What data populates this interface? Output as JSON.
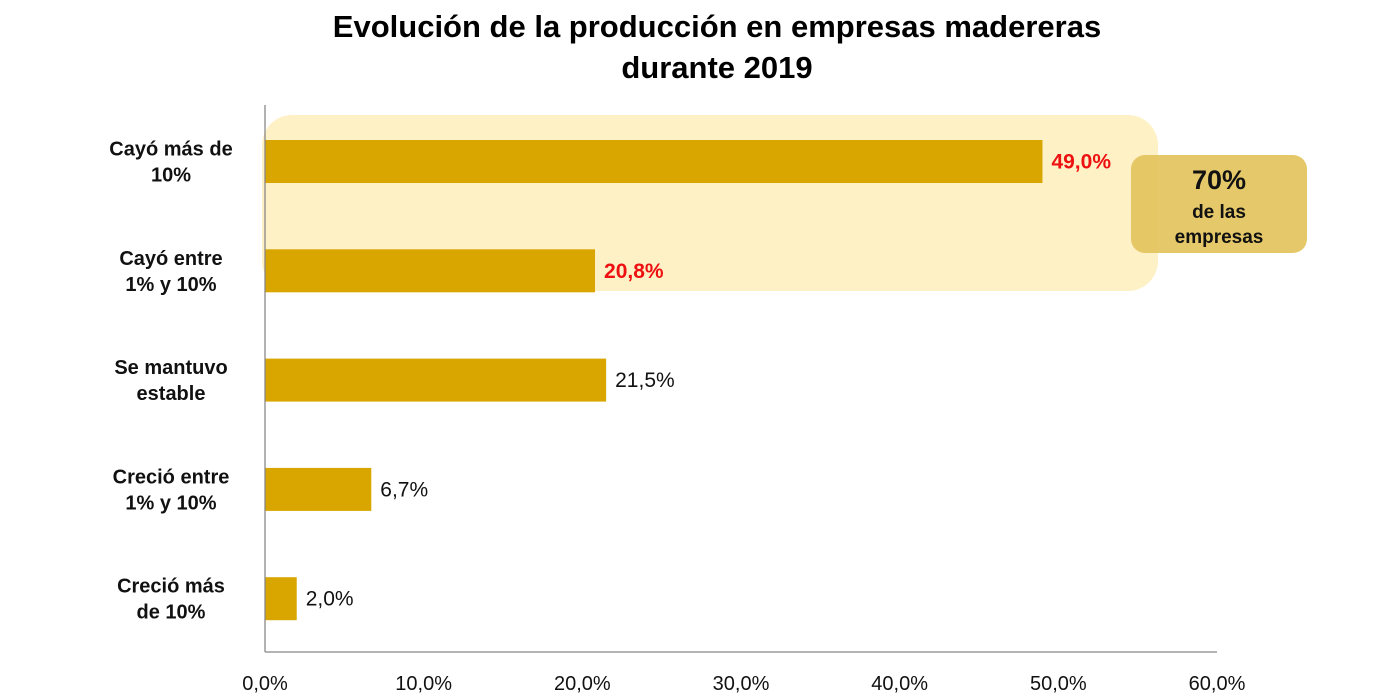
{
  "chart_data": {
    "type": "bar",
    "orientation": "horizontal",
    "title_lines": [
      "Evolución de la producción en empresas madereras",
      "durante 2019"
    ],
    "categories": [
      [
        "Cayó más de",
        "10%"
      ],
      [
        "Cayó entre",
        "1% y 10%"
      ],
      [
        "Se mantuvo",
        "estable"
      ],
      [
        "Creció entre",
        "1% y 10%"
      ],
      [
        "Creció más",
        "de 10%"
      ]
    ],
    "values": [
      49.0,
      20.8,
      21.5,
      6.7,
      2.0
    ],
    "data_labels": [
      "49,0%",
      "20,8%",
      "21,5%",
      "6,7%",
      "2,0%"
    ],
    "highlighted": [
      true,
      true,
      false,
      false,
      false
    ],
    "xlim": [
      0,
      60
    ],
    "x_ticks": [
      "0,0%",
      "10,0%",
      "20,0%",
      "30,0%",
      "40,0%",
      "50,0%",
      "60,0%"
    ],
    "xlabel": "",
    "ylabel": "",
    "grid": false,
    "annotation": {
      "value": "70%",
      "line1": "de las",
      "line2": "empresas"
    },
    "colors": {
      "bar": "#D9A600",
      "highlight_band": "#FFF1C6",
      "callout": "#E3C35C",
      "highlight_label": "#EE1111"
    }
  }
}
